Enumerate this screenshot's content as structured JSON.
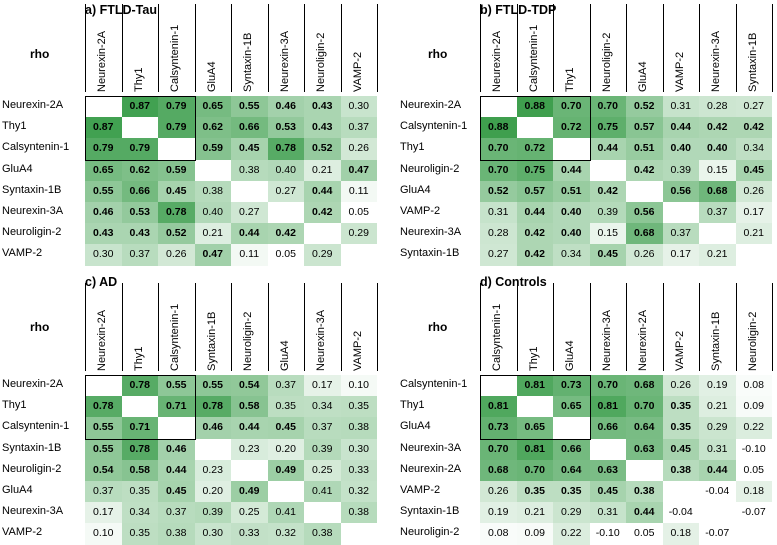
{
  "charts": [
    {
      "panel_label": "a) FTLD-Tau",
      "corner_label": "rho",
      "labels": [
        "Neurexin-2A",
        "Thy1",
        "Calsyntenin-1",
        "GluA4",
        "Syntaxin-1B",
        "Neurexin-3A",
        "Neuroligin-2",
        "VAMP-2"
      ],
      "cluster_size": 3,
      "matrix": [
        [
          null,
          "0.87",
          "0.79",
          "0.65",
          "0.55",
          "0.46",
          "0.43",
          "0.30"
        ],
        [
          "0.87",
          null,
          "0.79",
          "0.62",
          "0.66",
          "0.53",
          "0.43",
          "0.37"
        ],
        [
          "0.79",
          "0.79",
          null,
          "0.59",
          "0.45",
          "0.78",
          "0.52",
          "0.26"
        ],
        [
          "0.65",
          "0.62",
          "0.59",
          null,
          "0.38",
          "0.40",
          "0.21",
          "0.47"
        ],
        [
          "0.55",
          "0.66",
          "0.45",
          "0.38",
          null,
          "0.27",
          "0.44",
          "0.11"
        ],
        [
          "0.46",
          "0.53",
          "0.78",
          "0.40",
          "0.27",
          null,
          "0.42",
          "0.05"
        ],
        [
          "0.43",
          "0.43",
          "0.52",
          "0.21",
          "0.44",
          "0.42",
          null,
          "0.29"
        ],
        [
          "0.30",
          "0.37",
          "0.26",
          "0.47",
          "0.11",
          "0.05",
          "0.29",
          null
        ]
      ],
      "bold": [
        [
          0,
          1,
          1,
          1,
          1,
          1,
          1,
          0
        ],
        [
          1,
          0,
          1,
          1,
          1,
          1,
          1,
          0
        ],
        [
          1,
          1,
          0,
          1,
          1,
          1,
          1,
          0
        ],
        [
          1,
          1,
          1,
          0,
          0,
          0,
          0,
          1
        ],
        [
          1,
          1,
          1,
          0,
          0,
          0,
          1,
          0
        ],
        [
          1,
          1,
          1,
          0,
          0,
          0,
          1,
          0
        ],
        [
          1,
          1,
          1,
          0,
          1,
          1,
          0,
          0
        ],
        [
          0,
          0,
          0,
          1,
          0,
          0,
          0,
          0
        ]
      ]
    },
    {
      "panel_label": "b) FTLD-TDP",
      "corner_label": "rho",
      "labels": [
        "Neurexin-2A",
        "Calsyntenin-1",
        "Thy1",
        "Neuroligin-2",
        "GluA4",
        "VAMP-2",
        "Neurexin-3A",
        "Syntaxin-1B"
      ],
      "cluster_size": 3,
      "matrix": [
        [
          null,
          "0.88",
          "0.70",
          "0.70",
          "0.52",
          "0.31",
          "0.28",
          "0.27"
        ],
        [
          "0.88",
          null,
          "0.72",
          "0.75",
          "0.57",
          "0.44",
          "0.42",
          "0.42"
        ],
        [
          "0.70",
          "0.72",
          null,
          "0.44",
          "0.51",
          "0.40",
          "0.40",
          "0.34"
        ],
        [
          "0.70",
          "0.75",
          "0.44",
          null,
          "0.42",
          "0.39",
          "0.15",
          "0.45"
        ],
        [
          "0.52",
          "0.57",
          "0.51",
          "0.42",
          null,
          "0.56",
          "0.68",
          "0.26"
        ],
        [
          "0.31",
          "0.44",
          "0.40",
          "0.39",
          "0.56",
          null,
          "0.37",
          "0.17"
        ],
        [
          "0.28",
          "0.42",
          "0.40",
          "0.15",
          "0.68",
          "0.37",
          null,
          "0.21"
        ],
        [
          "0.27",
          "0.42",
          "0.34",
          "0.45",
          "0.26",
          "0.17",
          "0.21",
          null
        ]
      ],
      "bold": [
        [
          0,
          1,
          1,
          1,
          1,
          0,
          0,
          0
        ],
        [
          1,
          0,
          1,
          1,
          1,
          1,
          1,
          1
        ],
        [
          1,
          1,
          0,
          1,
          1,
          1,
          1,
          0
        ],
        [
          1,
          1,
          1,
          0,
          1,
          0,
          0,
          1
        ],
        [
          1,
          1,
          1,
          1,
          0,
          1,
          1,
          0
        ],
        [
          0,
          1,
          1,
          0,
          1,
          0,
          0,
          0
        ],
        [
          0,
          1,
          1,
          0,
          1,
          0,
          0,
          0
        ],
        [
          0,
          1,
          0,
          1,
          0,
          0,
          0,
          0
        ]
      ]
    },
    {
      "panel_label": "c) AD",
      "corner_label": "rho",
      "labels": [
        "Neurexin-2A",
        "Thy1",
        "Calsyntenin-1",
        "Syntaxin-1B",
        "Neuroligin-2",
        "GluA4",
        "Neurexin-3A",
        "VAMP-2"
      ],
      "cluster_size": 3,
      "matrix": [
        [
          null,
          "0.78",
          "0.55",
          "0.55",
          "0.54",
          "0.37",
          "0.17",
          "0.10"
        ],
        [
          "0.78",
          null,
          "0.71",
          "0.78",
          "0.58",
          "0.35",
          "0.34",
          "0.35"
        ],
        [
          "0.55",
          "0.71",
          null,
          "0.46",
          "0.44",
          "0.45",
          "0.37",
          "0.38"
        ],
        [
          "0.55",
          "0.78",
          "0.46",
          null,
          "0.23",
          "0.20",
          "0.39",
          "0.30"
        ],
        [
          "0.54",
          "0.58",
          "0.44",
          "0.23",
          null,
          "0.49",
          "0.25",
          "0.33"
        ],
        [
          "0.37",
          "0.35",
          "0.45",
          "0.20",
          "0.49",
          null,
          "0.41",
          "0.32"
        ],
        [
          "0.17",
          "0.34",
          "0.37",
          "0.39",
          "0.25",
          "0.41",
          null,
          "0.38"
        ],
        [
          "0.10",
          "0.35",
          "0.38",
          "0.30",
          "0.33",
          "0.32",
          "0.38",
          null
        ]
      ],
      "bold": [
        [
          0,
          1,
          1,
          1,
          1,
          0,
          0,
          0
        ],
        [
          1,
          0,
          1,
          1,
          1,
          0,
          0,
          0
        ],
        [
          1,
          1,
          0,
          1,
          1,
          1,
          0,
          0
        ],
        [
          1,
          1,
          1,
          0,
          0,
          0,
          0,
          0
        ],
        [
          1,
          1,
          1,
          0,
          0,
          1,
          0,
          0
        ],
        [
          0,
          0,
          1,
          0,
          1,
          0,
          0,
          0
        ],
        [
          0,
          0,
          0,
          0,
          0,
          0,
          0,
          0
        ],
        [
          0,
          0,
          0,
          0,
          0,
          0,
          0,
          0
        ]
      ]
    },
    {
      "panel_label": "d) Controls",
      "corner_label": "rho",
      "labels": [
        "Calsyntenin-1",
        "Thy1",
        "GluA4",
        "Neurexin-3A",
        "Neurexin-2A",
        "VAMP-2",
        "Syntaxin-1B",
        "Neuroligin-2"
      ],
      "cluster_size": 3,
      "matrix": [
        [
          null,
          "0.81",
          "0.73",
          "0.70",
          "0.68",
          "0.26",
          "0.19",
          "0.08"
        ],
        [
          "0.81",
          null,
          "0.65",
          "0.81",
          "0.70",
          "0.35",
          "0.21",
          "0.09"
        ],
        [
          "0.73",
          "0.65",
          null,
          "0.66",
          "0.64",
          "0.35",
          "0.29",
          "0.22"
        ],
        [
          "0.70",
          "0.81",
          "0.66",
          null,
          "0.63",
          "0.45",
          "0.31",
          "-0.10"
        ],
        [
          "0.68",
          "0.70",
          "0.64",
          "0.63",
          null,
          "0.38",
          "0.44",
          "0.05"
        ],
        [
          "0.26",
          "0.35",
          "0.35",
          "0.45",
          "0.38",
          null,
          "-0.04",
          "0.18"
        ],
        [
          "0.19",
          "0.21",
          "0.29",
          "0.31",
          "0.44",
          "-0.04",
          null,
          "-0.07"
        ],
        [
          "0.08",
          "0.09",
          "0.22",
          "-0.10",
          "0.05",
          "0.18",
          "-0.07",
          null
        ]
      ],
      "bold": [
        [
          0,
          1,
          1,
          1,
          1,
          0,
          0,
          0
        ],
        [
          1,
          0,
          1,
          1,
          1,
          1,
          0,
          0
        ],
        [
          1,
          1,
          0,
          1,
          1,
          1,
          0,
          0
        ],
        [
          1,
          1,
          1,
          0,
          1,
          1,
          0,
          0
        ],
        [
          1,
          1,
          1,
          1,
          0,
          1,
          1,
          0
        ],
        [
          0,
          1,
          1,
          1,
          1,
          0,
          0,
          0
        ],
        [
          0,
          0,
          0,
          0,
          1,
          0,
          0,
          0
        ],
        [
          0,
          0,
          0,
          0,
          0,
          0,
          0,
          0
        ]
      ]
    }
  ],
  "chart_data": [
    {
      "type": "heatmap",
      "title": "a) FTLD-Tau",
      "value_label": "rho",
      "categories": [
        "Neurexin-2A",
        "Thy1",
        "Calsyntenin-1",
        "GluA4",
        "Syntaxin-1B",
        "Neurexin-3A",
        "Neuroligin-2",
        "VAMP-2"
      ],
      "values": [
        [
          null,
          0.87,
          0.79,
          0.65,
          0.55,
          0.46,
          0.43,
          0.3
        ],
        [
          0.87,
          null,
          0.79,
          0.62,
          0.66,
          0.53,
          0.43,
          0.37
        ],
        [
          0.79,
          0.79,
          null,
          0.59,
          0.45,
          0.78,
          0.52,
          0.26
        ],
        [
          0.65,
          0.62,
          0.59,
          null,
          0.38,
          0.4,
          0.21,
          0.47
        ],
        [
          0.55,
          0.66,
          0.45,
          0.38,
          null,
          0.27,
          0.44,
          0.11
        ],
        [
          0.46,
          0.53,
          0.78,
          0.4,
          0.27,
          null,
          0.42,
          0.05
        ],
        [
          0.43,
          0.43,
          0.52,
          0.21,
          0.44,
          0.42,
          null,
          0.29
        ],
        [
          0.3,
          0.37,
          0.26,
          0.47,
          0.11,
          0.05,
          0.29,
          null
        ]
      ]
    },
    {
      "type": "heatmap",
      "title": "b) FTLD-TDP",
      "value_label": "rho",
      "categories": [
        "Neurexin-2A",
        "Calsyntenin-1",
        "Thy1",
        "Neuroligin-2",
        "GluA4",
        "VAMP-2",
        "Neurexin-3A",
        "Syntaxin-1B"
      ],
      "values": [
        [
          null,
          0.88,
          0.7,
          0.7,
          0.52,
          0.31,
          0.28,
          0.27
        ],
        [
          0.88,
          null,
          0.72,
          0.75,
          0.57,
          0.44,
          0.42,
          0.42
        ],
        [
          0.7,
          0.72,
          null,
          0.44,
          0.51,
          0.4,
          0.4,
          0.34
        ],
        [
          0.7,
          0.75,
          0.44,
          null,
          0.42,
          0.39,
          0.15,
          0.45
        ],
        [
          0.52,
          0.57,
          0.51,
          0.42,
          null,
          0.56,
          0.68,
          0.26
        ],
        [
          0.31,
          0.44,
          0.4,
          0.39,
          0.56,
          null,
          0.37,
          0.17
        ],
        [
          0.28,
          0.42,
          0.4,
          0.15,
          0.68,
          0.37,
          null,
          0.21
        ],
        [
          0.27,
          0.42,
          0.34,
          0.45,
          0.26,
          0.17,
          0.21,
          null
        ]
      ]
    },
    {
      "type": "heatmap",
      "title": "c) AD",
      "value_label": "rho",
      "categories": [
        "Neurexin-2A",
        "Thy1",
        "Calsyntenin-1",
        "Syntaxin-1B",
        "Neuroligin-2",
        "GluA4",
        "Neurexin-3A",
        "VAMP-2"
      ],
      "values": [
        [
          null,
          0.78,
          0.55,
          0.55,
          0.54,
          0.37,
          0.17,
          0.1
        ],
        [
          0.78,
          null,
          0.71,
          0.78,
          0.58,
          0.35,
          0.34,
          0.35
        ],
        [
          0.55,
          0.71,
          null,
          0.46,
          0.44,
          0.45,
          0.37,
          0.38
        ],
        [
          0.55,
          0.78,
          0.46,
          null,
          0.23,
          0.2,
          0.39,
          0.3
        ],
        [
          0.54,
          0.58,
          0.44,
          0.23,
          null,
          0.49,
          0.25,
          0.33
        ],
        [
          0.37,
          0.35,
          0.45,
          0.2,
          0.49,
          null,
          0.41,
          0.32
        ],
        [
          0.17,
          0.34,
          0.37,
          0.39,
          0.25,
          0.41,
          null,
          0.38
        ],
        [
          0.1,
          0.35,
          0.38,
          0.3,
          0.33,
          0.32,
          0.38,
          null
        ]
      ]
    },
    {
      "type": "heatmap",
      "title": "d) Controls",
      "value_label": "rho",
      "categories": [
        "Calsyntenin-1",
        "Thy1",
        "GluA4",
        "Neurexin-3A",
        "Neurexin-2A",
        "VAMP-2",
        "Syntaxin-1B",
        "Neuroligin-2"
      ],
      "values": [
        [
          null,
          0.81,
          0.73,
          0.7,
          0.68,
          0.26,
          0.19,
          0.08
        ],
        [
          0.81,
          null,
          0.65,
          0.81,
          0.7,
          0.35,
          0.21,
          0.09
        ],
        [
          0.73,
          0.65,
          null,
          0.66,
          0.64,
          0.35,
          0.29,
          0.22
        ],
        [
          0.7,
          0.81,
          0.66,
          null,
          0.63,
          0.45,
          0.31,
          -0.1
        ],
        [
          0.68,
          0.7,
          0.64,
          0.63,
          null,
          0.38,
          0.44,
          0.05
        ],
        [
          0.26,
          0.35,
          0.35,
          0.45,
          0.38,
          null,
          -0.04,
          0.18
        ],
        [
          0.19,
          0.21,
          0.29,
          0.31,
          0.44,
          -0.04,
          null,
          -0.07
        ],
        [
          0.08,
          0.09,
          0.22,
          -0.1,
          0.05,
          0.18,
          -0.07,
          null
        ]
      ]
    }
  ],
  "colors": {
    "high": "#3a9d4a",
    "low": "#ffffff",
    "text": "#000000",
    "border": "#000000"
  }
}
